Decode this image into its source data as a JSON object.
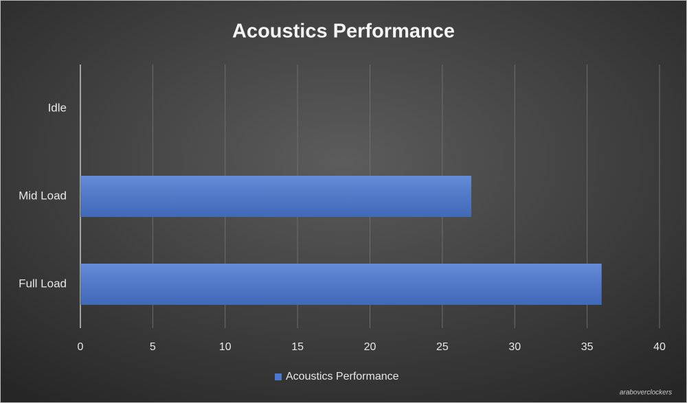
{
  "chart_data": {
    "type": "bar",
    "orientation": "horizontal",
    "title": "Acoustics Performance",
    "categories": [
      "Idle",
      "Mid Load",
      "Full Load"
    ],
    "series": [
      {
        "name": "Acoustics Performance",
        "color": "#4a78d2",
        "values": [
          0,
          27,
          36
        ]
      }
    ],
    "xlim": [
      0,
      40
    ],
    "xticks": [
      0,
      5,
      10,
      15,
      20,
      25,
      30,
      35,
      40
    ],
    "grid": true,
    "legend": "bottom",
    "watermark": "araboverclockers"
  }
}
